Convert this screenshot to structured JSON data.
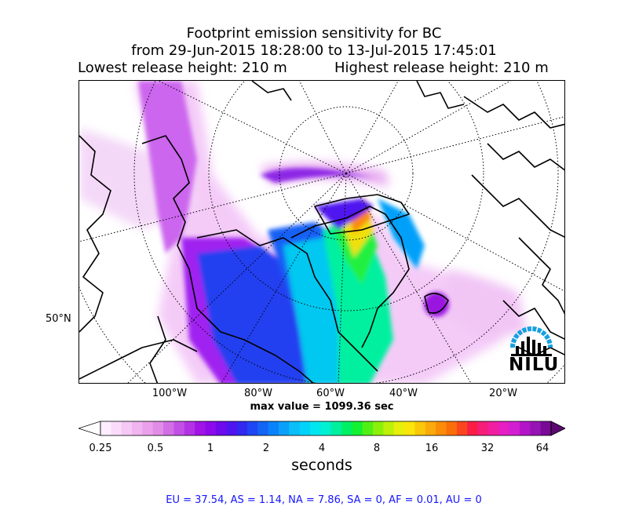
{
  "title": {
    "line1": "Footprint emission sensitivity for BC",
    "line2": "from 29-Jun-2015 18:28:00 to 13-Jul-2015 17:45:01",
    "lowest": "Lowest release height: 210 m",
    "highest": "Highest release height: 210 m"
  },
  "axes": {
    "lon_ticks": [
      "100°W",
      "80°W",
      "60°W",
      "40°W",
      "20°W"
    ],
    "lat_ticks": [
      "50°N"
    ]
  },
  "max_value": "max value = 1099.36 sec",
  "colorbar": {
    "ticks": [
      "0.25",
      "0.5",
      "1",
      "2",
      "4",
      "8",
      "16",
      "32",
      "64"
    ],
    "label": "seconds",
    "colors": [
      "#ffeeff",
      "#fadcfa",
      "#f5c8f5",
      "#f0b4f0",
      "#eba0eb",
      "#e18ce6",
      "#d26ee6",
      "#c350e6",
      "#b432e6",
      "#a014e6",
      "#8c0aeb",
      "#6e0aeb",
      "#5014f0",
      "#3228f0",
      "#1e46f5",
      "#1464f5",
      "#0a82fa",
      "#0aa0fa",
      "#0abefa",
      "#00d2fa",
      "#00e6f0",
      "#00f0d2",
      "#00f0a0",
      "#00f064",
      "#14f032",
      "#50f014",
      "#8cf00a",
      "#bef00a",
      "#e6f00a",
      "#fae60a",
      "#fac80a",
      "#faaa0a",
      "#fa8c0a",
      "#fa6e0a",
      "#fa461e",
      "#fa1e46",
      "#f51e78",
      "#f01ea0",
      "#e61ec3",
      "#d21ed2",
      "#b414c8",
      "#9614b4",
      "#780a96"
    ]
  },
  "region_summary": "EU = 37.54,  AS = 1.14,  NA = 7.86,  SA = 0,  AF = 0.01,  AU = 0",
  "logo": {
    "text": "NILU",
    "arc_color": "#16a0e0"
  }
}
